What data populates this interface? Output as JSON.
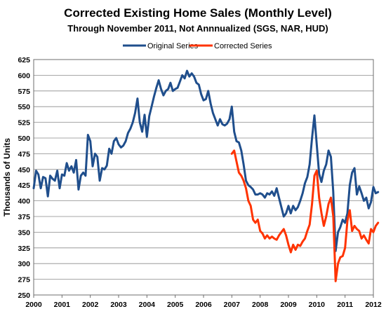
{
  "chart_data": {
    "type": "line",
    "title": "Corrected Existing Home Sales (Monthly Level)",
    "subtitle": "Through November 2011, Not Annnualized (SGS, NAR, HUD)",
    "xlabel": "",
    "ylabel": "Thousands of Units",
    "xlim": [
      2000,
      2012
    ],
    "ylim": [
      250,
      625
    ],
    "x_ticks": [
      "2000",
      "2001",
      "2002",
      "2003",
      "2004",
      "2005",
      "2006",
      "2007",
      "2008",
      "2009",
      "2010",
      "2011",
      "2012"
    ],
    "y_ticks": [
      "250",
      "275",
      "300",
      "325",
      "350",
      "375",
      "400",
      "425",
      "450",
      "475",
      "500",
      "525",
      "550",
      "575",
      "600",
      "625"
    ],
    "grid": true,
    "legend": "top-center",
    "series": [
      {
        "name": "Original Series",
        "color": "#1f4e8c",
        "x_start": 2000.0,
        "step": 0.08333,
        "values": [
          420,
          448,
          442,
          420,
          438,
          436,
          407,
          440,
          435,
          432,
          448,
          420,
          442,
          440,
          460,
          448,
          455,
          445,
          465,
          418,
          440,
          445,
          440,
          505,
          495,
          455,
          475,
          470,
          432,
          452,
          450,
          456,
          483,
          475,
          495,
          500,
          490,
          485,
          488,
          495,
          508,
          515,
          525,
          540,
          563,
          525,
          510,
          537,
          502,
          535,
          550,
          566,
          580,
          592,
          578,
          568,
          575,
          578,
          588,
          575,
          578,
          580,
          590,
          600,
          595,
          607,
          598,
          603,
          598,
          588,
          585,
          570,
          560,
          562,
          575,
          555,
          540,
          530,
          520,
          530,
          522,
          520,
          523,
          530,
          550,
          510,
          495,
          493,
          480,
          458,
          432,
          425,
          422,
          418,
          410,
          410,
          412,
          410,
          405,
          412,
          410,
          415,
          408,
          420,
          405,
          390,
          375,
          380,
          392,
          380,
          392,
          385,
          390,
          400,
          412,
          428,
          438,
          458,
          500,
          536,
          490,
          443,
          430,
          448,
          458,
          480,
          470,
          415,
          320,
          350,
          358,
          370,
          365,
          380,
          425,
          445,
          452,
          410,
          423,
          412,
          400,
          405,
          388,
          398,
          422,
          412,
          414
        ]
      },
      {
        "name": "Corrected Series",
        "color": "#ff3300",
        "x_start": 2007.0,
        "step": 0.08333,
        "values": [
          475,
          480,
          462,
          445,
          440,
          432,
          420,
          400,
          392,
          370,
          365,
          370,
          352,
          348,
          340,
          345,
          340,
          343,
          340,
          338,
          345,
          350,
          355,
          345,
          330,
          318,
          330,
          322,
          330,
          328,
          335,
          340,
          352,
          362,
          395,
          440,
          448,
          405,
          380,
          360,
          375,
          395,
          405,
          375,
          272,
          300,
          310,
          312,
          325,
          368,
          385,
          352,
          360,
          355,
          352,
          340,
          345,
          338,
          332,
          355,
          350,
          360,
          365
        ]
      }
    ]
  }
}
